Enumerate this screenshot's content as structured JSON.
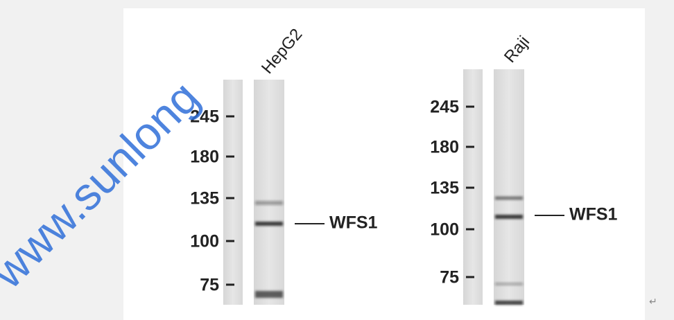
{
  "watermark": "www.sunlong",
  "panels": [
    {
      "lane_label": "HepG2",
      "markers": [
        "245",
        "180",
        "135",
        "100",
        "75"
      ],
      "band_label": "WFS1"
    },
    {
      "lane_label": "Raji",
      "markers": [
        "245",
        "180",
        "135",
        "100",
        "75"
      ],
      "band_label": "WFS1"
    }
  ],
  "return_mark": "↵"
}
